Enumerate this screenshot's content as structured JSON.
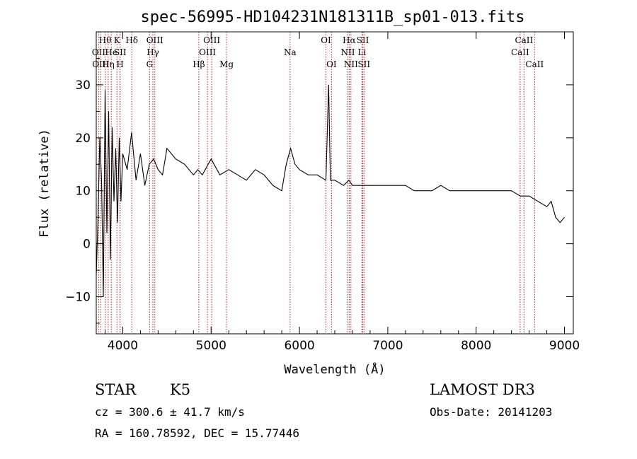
{
  "chart_data": {
    "type": "line",
    "title": "spec-56995-HD104231N181311B_sp01-013.fits",
    "xlabel": "Wavelength (Å)",
    "ylabel": "Flux (relative)",
    "xlim": [
      3700,
      9100
    ],
    "ylim": [
      -17,
      40
    ],
    "x_ticks": [
      4000,
      5000,
      6000,
      7000,
      8000,
      9000
    ],
    "y_ticks": [
      -10,
      0,
      10,
      20,
      30
    ],
    "grid": false,
    "series": [
      {
        "x": [
          3700,
          3720,
          3740,
          3760,
          3780,
          3800,
          3820,
          3840,
          3860,
          3880,
          3900,
          3920,
          3940,
          3960,
          3980,
          4000,
          4050,
          4100,
          4150,
          4200,
          4250,
          4300,
          4350,
          4400,
          4450,
          4500,
          4600,
          4700,
          4800,
          4850,
          4900,
          5000,
          5100,
          5200,
          5300,
          5400,
          5500,
          5600,
          5700,
          5800,
          5850,
          5900,
          5950,
          6000,
          6100,
          6200,
          6300,
          6330,
          6350,
          6400,
          6500,
          6560,
          6600,
          6700,
          6800,
          6900,
          7000,
          7100,
          7200,
          7300,
          7400,
          7500,
          7600,
          7700,
          7800,
          7900,
          8000,
          8100,
          8200,
          8300,
          8400,
          8500,
          8600,
          8700,
          8800,
          8850,
          8900,
          8950,
          9000
        ],
        "y": [
          -6,
          5,
          20,
          12,
          -10,
          29,
          2,
          25,
          -3,
          22,
          8,
          18,
          4,
          20,
          8,
          17,
          14,
          21,
          12,
          17,
          11,
          15,
          16,
          14,
          13,
          18,
          16,
          15,
          13,
          14,
          13,
          16,
          13,
          14,
          13,
          12,
          14,
          13,
          11,
          10,
          15,
          18,
          15,
          14,
          13,
          13,
          12,
          30,
          12,
          12,
          11,
          12,
          11,
          11,
          11,
          11,
          11,
          11,
          11,
          10,
          10,
          10,
          11,
          10,
          10,
          10,
          10,
          10,
          10,
          10,
          10,
          9,
          9,
          8,
          7,
          8,
          5,
          4,
          5
        ]
      }
    ],
    "line_markers": [
      {
        "wl": 3727,
        "label": "OII",
        "row": 2
      },
      {
        "wl": 3750,
        "label": "OIII",
        "row": 3
      },
      {
        "wl": 3800,
        "label": "Hθ",
        "row": 1
      },
      {
        "wl": 3835,
        "label": "Hη",
        "row": 3
      },
      {
        "wl": 3870,
        "label": "He",
        "row": 2
      },
      {
        "wl": 3934,
        "label": "K",
        "row": 1
      },
      {
        "wl": 3969,
        "label": "H",
        "row": 3
      },
      {
        "wl": 3970,
        "label": "SII",
        "row": 2
      },
      {
        "wl": 4102,
        "label": "Hδ",
        "row": 1
      },
      {
        "wl": 4304,
        "label": "G",
        "row": 3
      },
      {
        "wl": 4341,
        "label": "Hγ",
        "row": 2
      },
      {
        "wl": 4363,
        "label": "OIII",
        "row": 1
      },
      {
        "wl": 4861,
        "label": "Hβ",
        "row": 3
      },
      {
        "wl": 4959,
        "label": "OIII",
        "row": 2
      },
      {
        "wl": 5007,
        "label": "OIII",
        "row": 1
      },
      {
        "wl": 5175,
        "label": "Mg",
        "row": 3
      },
      {
        "wl": 5894,
        "label": "Na",
        "row": 2
      },
      {
        "wl": 6300,
        "label": "OI",
        "row": 1
      },
      {
        "wl": 6363,
        "label": "OI",
        "row": 3
      },
      {
        "wl": 6548,
        "label": "NII",
        "row": 2
      },
      {
        "wl": 6563,
        "label": "Hα",
        "row": 1
      },
      {
        "wl": 6583,
        "label": "NII",
        "row": 3
      },
      {
        "wl": 6707,
        "label": "Li",
        "row": 2
      },
      {
        "wl": 6717,
        "label": "SII",
        "row": 1
      },
      {
        "wl": 6731,
        "label": "SII",
        "row": 3
      },
      {
        "wl": 8498,
        "label": "CaII",
        "row": 2
      },
      {
        "wl": 8542,
        "label": "CaII",
        "row": 1
      },
      {
        "wl": 8662,
        "label": "CaII",
        "row": 3
      }
    ]
  },
  "info": {
    "class": "STAR",
    "subclass": "K5",
    "survey": "LAMOST DR3",
    "cz": "cz = 300.6 ± 41.7 km/s",
    "obs_date": "Obs-Date: 20141203",
    "coords": "RA = 160.78592, DEC =  15.77446"
  }
}
